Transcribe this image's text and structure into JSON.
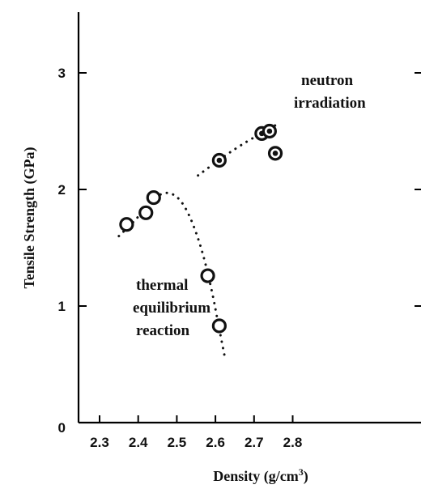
{
  "chart_data": {
    "type": "scatter",
    "title": "",
    "xlabel": "Density (g/cm",
    "xlabel_sup": "3",
    "xlabel_close": ")",
    "ylabel": "Tensile Strength (GPa)",
    "xlim": [
      2.25,
      2.85
    ],
    "ylim": [
      0,
      3.5
    ],
    "xticks": [
      2.3,
      2.4,
      2.5,
      2.6,
      2.7,
      2.8
    ],
    "xtick_labels": [
      "2.3",
      "2.4",
      "2.5",
      "2.6",
      "2.7",
      "2.8"
    ],
    "yticks": [
      0,
      1,
      2,
      3
    ],
    "ytick_labels": [
      "0",
      "1",
      "2",
      "3"
    ],
    "grid": false,
    "series": [
      {
        "marker": "open-circle",
        "x": [
          2.37,
          2.42,
          2.44,
          2.58,
          2.61
        ],
        "y": [
          1.7,
          1.8,
          1.93,
          1.26,
          0.83
        ]
      },
      {
        "marker": "dotted-circle",
        "x": [
          2.61,
          2.72,
          2.74,
          2.755
        ],
        "y": [
          2.25,
          2.48,
          2.5,
          2.31
        ]
      }
    ],
    "trend_lines": [
      {
        "x": [
          2.35,
          2.4,
          2.44,
          2.48,
          2.52,
          2.56,
          2.59,
          2.61,
          2.625
        ],
        "y": [
          1.6,
          1.76,
          1.93,
          1.99,
          1.88,
          1.55,
          1.15,
          0.8,
          0.55
        ]
      },
      {
        "x": [
          2.555,
          2.62,
          2.68,
          2.73,
          2.765
        ],
        "y": [
          2.12,
          2.28,
          2.41,
          2.5,
          2.57
        ]
      }
    ],
    "annotations": [
      {
        "lines": [
          "neutron",
          "irradiation"
        ]
      },
      {
        "lines": [
          "thermal",
          "equilibrium",
          "reaction"
        ]
      }
    ]
  }
}
